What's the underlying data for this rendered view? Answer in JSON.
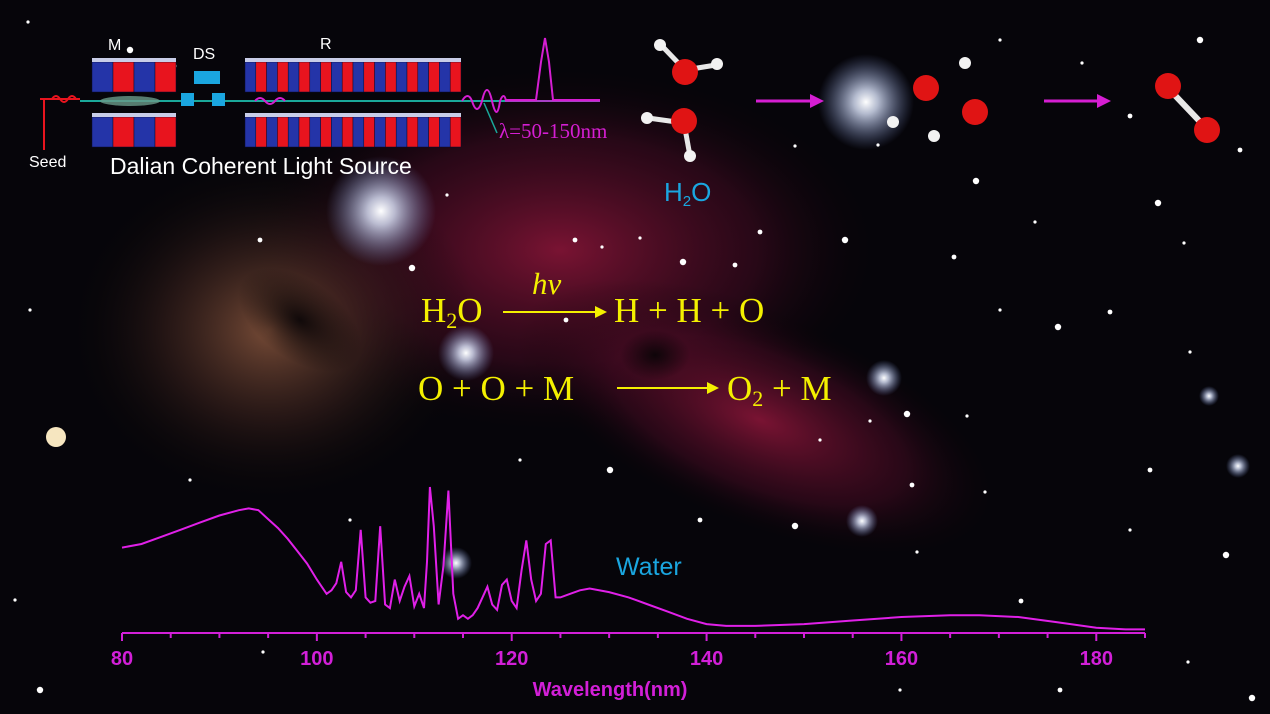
{
  "title_source": "Dalian Coherent Light Source",
  "labels": {
    "seed": "Seed",
    "modulator": "M",
    "dispersion": "DS",
    "radiator": "R",
    "wavelength_range": "λ=50-150nm",
    "molecule": "H",
    "molecule_sub": "2",
    "molecule_tail": "O",
    "series": "Water"
  },
  "equations": {
    "eq1_left_a": "H",
    "eq1_left_sub": "2",
    "eq1_left_b": "O",
    "eq1_over": "hv",
    "eq1_right": "H + H + O",
    "eq2_left": "O + O + M",
    "eq2_right_a": "O",
    "eq2_right_sub": "2",
    "eq2_right_b": " + M"
  },
  "colors": {
    "spectrum": "#e020e8",
    "axis": "#d21fd8",
    "equation": "#f4f000",
    "label_blue": "#1aa6e0",
    "magnet_red": "#e8141e",
    "magnet_blue": "#2434a8",
    "oxygen": "#e01414"
  },
  "chart_data": {
    "type": "line",
    "title": "",
    "xlabel": "Wavelength(nm)",
    "ylabel": "",
    "xlim": [
      80,
      185
    ],
    "xticks": [
      80,
      100,
      120,
      140,
      160,
      180
    ],
    "series": [
      {
        "name": "Water",
        "x": [
          80,
          82,
          84,
          86,
          88,
          90,
          92,
          93,
          94,
          95,
          96,
          97,
          98,
          99,
          100,
          100.5,
          101,
          101.5,
          102,
          102.5,
          103,
          103.5,
          104,
          104.5,
          105,
          105.5,
          106,
          106.5,
          107,
          107.5,
          108,
          108.5,
          109,
          109.5,
          110,
          110.5,
          111,
          111.3,
          111.6,
          112,
          112.5,
          113,
          113.5,
          114,
          114.5,
          115,
          115.5,
          116,
          116.5,
          117,
          117.5,
          118,
          118.5,
          119,
          119.5,
          120,
          120.5,
          121,
          121.5,
          122,
          122.5,
          123,
          123.5,
          124,
          124.5,
          125,
          126,
          127,
          128,
          130,
          132,
          134,
          136,
          138,
          140,
          142,
          145,
          150,
          155,
          160,
          165,
          168,
          172,
          176,
          180,
          183,
          185
        ],
        "y": [
          0.48,
          0.5,
          0.54,
          0.58,
          0.62,
          0.66,
          0.69,
          0.7,
          0.69,
          0.64,
          0.59,
          0.53,
          0.46,
          0.39,
          0.3,
          0.26,
          0.22,
          0.24,
          0.28,
          0.4,
          0.23,
          0.2,
          0.24,
          0.58,
          0.2,
          0.17,
          0.18,
          0.6,
          0.16,
          0.14,
          0.3,
          0.18,
          0.26,
          0.32,
          0.15,
          0.22,
          0.14,
          0.4,
          0.82,
          0.6,
          0.16,
          0.38,
          0.8,
          0.22,
          0.08,
          0.1,
          0.08,
          0.1,
          0.14,
          0.2,
          0.26,
          0.16,
          0.13,
          0.27,
          0.3,
          0.18,
          0.14,
          0.35,
          0.52,
          0.3,
          0.18,
          0.22,
          0.5,
          0.52,
          0.2,
          0.2,
          0.22,
          0.24,
          0.25,
          0.23,
          0.2,
          0.16,
          0.12,
          0.08,
          0.05,
          0.04,
          0.04,
          0.05,
          0.07,
          0.09,
          0.1,
          0.1,
          0.09,
          0.06,
          0.03,
          0.02,
          0.02
        ]
      }
    ],
    "grid": false
  }
}
